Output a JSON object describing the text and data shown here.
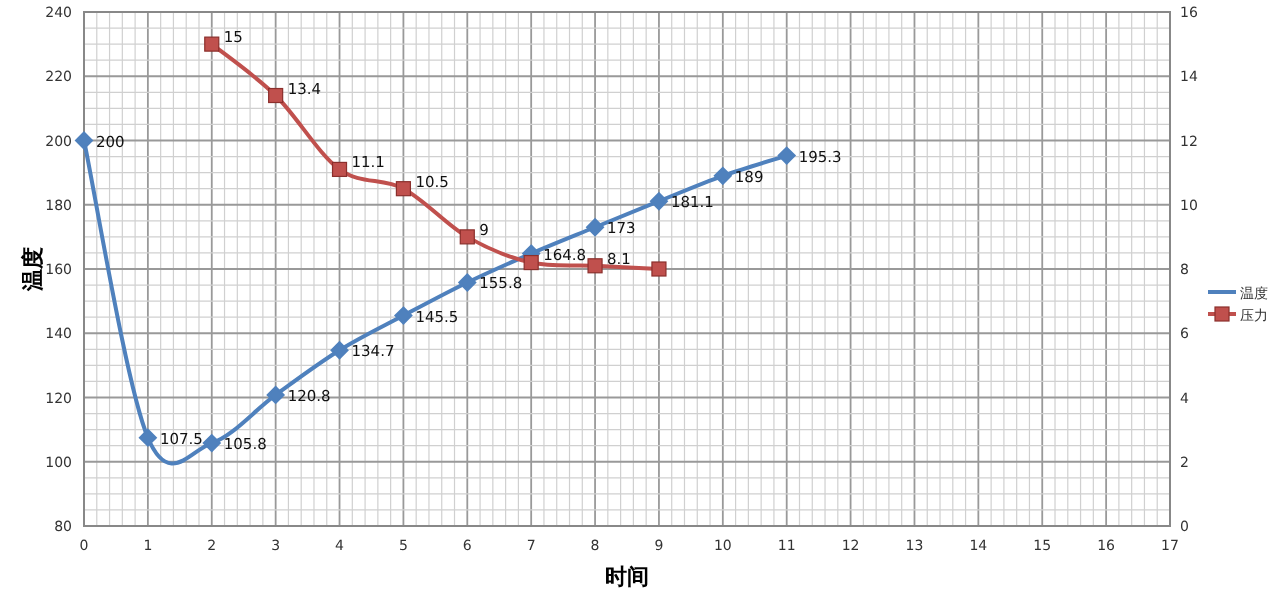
{
  "chart_data": {
    "type": "line",
    "xlabel": "时间",
    "ylabel": "温度",
    "xlim": [
      0,
      17
    ],
    "xticks": [
      0,
      1,
      2,
      3,
      4,
      5,
      6,
      7,
      8,
      9,
      10,
      11,
      12,
      13,
      14,
      15,
      16,
      17
    ],
    "ylim": [
      80,
      240
    ],
    "yticks": [
      80,
      100,
      120,
      140,
      160,
      180,
      200,
      220,
      240
    ],
    "y2lim": [
      0,
      16
    ],
    "y2ticks": [
      0,
      2,
      4,
      6,
      8,
      10,
      12,
      14,
      16
    ],
    "grid": true,
    "legend": "right",
    "series": [
      {
        "name": "温度",
        "color": "#4f81bd",
        "marker": "diamond",
        "x": [
          0,
          1,
          2,
          3,
          4,
          5,
          6,
          7,
          8,
          9,
          10,
          11
        ],
        "values": [
          200,
          107.5,
          105.8,
          120.8,
          134.7,
          145.5,
          155.8,
          164.8,
          173,
          181.1,
          189,
          195.3
        ],
        "value_labels": [
          "200",
          "107.5",
          "105.8",
          "120.8",
          "134.7",
          "145.5",
          "155.8",
          "164.8",
          "173",
          "181.1",
          "189",
          "195.3"
        ]
      },
      {
        "name": "压力",
        "color": "#c0504d",
        "marker": "square",
        "axis": "y2",
        "x": [
          2,
          3,
          4,
          5,
          6,
          7,
          8,
          9
        ],
        "values": [
          15,
          13.4,
          11.1,
          10.5,
          9,
          8.2,
          8.1,
          8
        ],
        "value_labels": [
          "15",
          "13.4",
          "11.1",
          "10.5",
          "9",
          null,
          "8.1",
          null
        ]
      }
    ]
  }
}
